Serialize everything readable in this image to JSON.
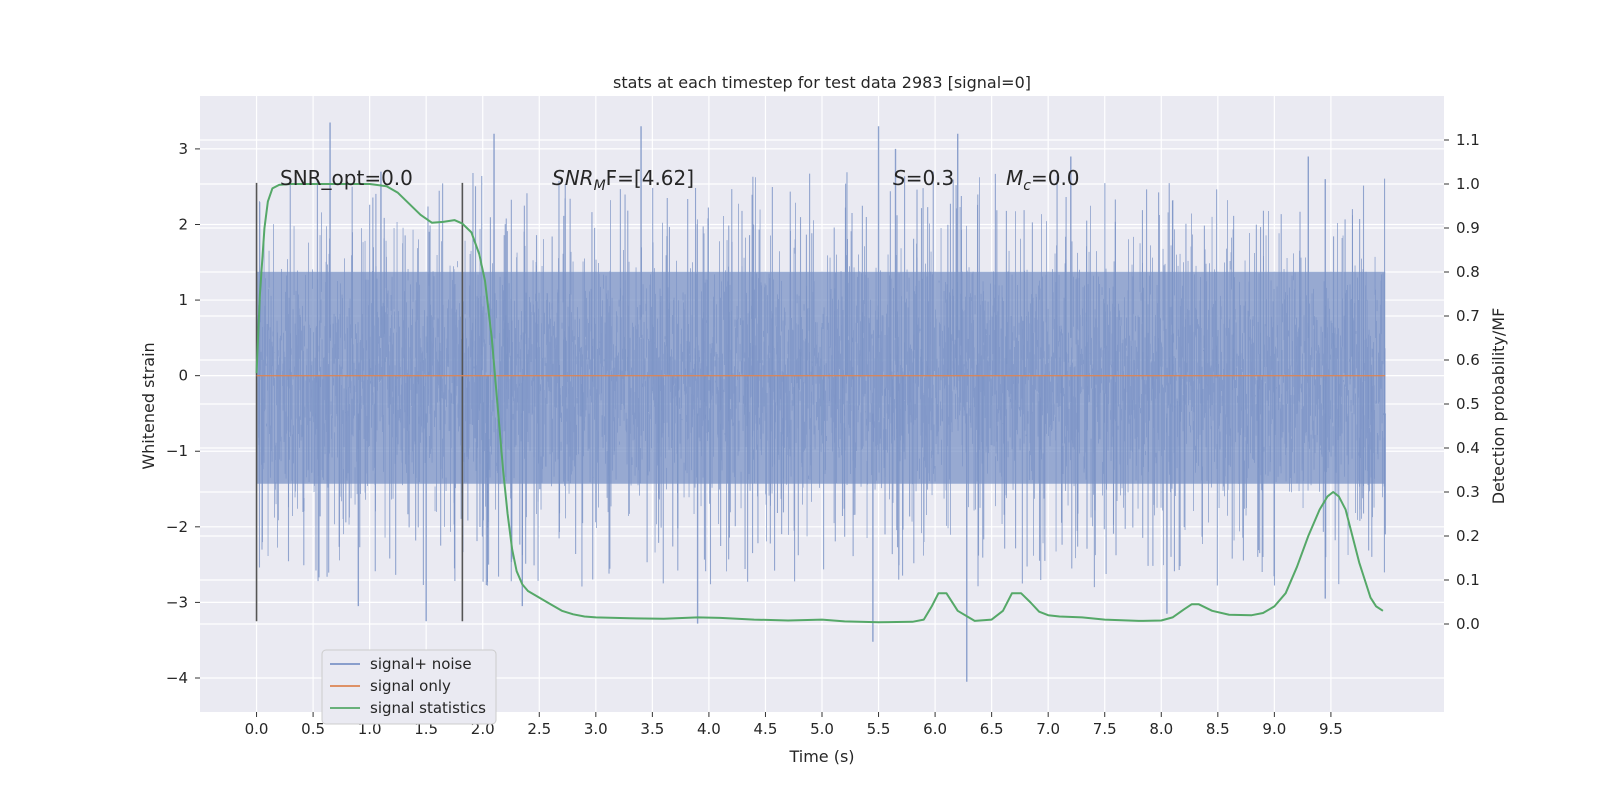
{
  "chart_data": {
    "type": "line",
    "title": "stats at each timestep for test data 2983 [signal=0]",
    "xlabel": "Time (s)",
    "ylabel_left": "Whitened strain",
    "ylabel_right": "Detection probability/MF",
    "xlim": [
      -0.5,
      10.5
    ],
    "ylim_left": [
      -4.45,
      3.7
    ],
    "ylim_right": [
      -0.2,
      1.2
    ],
    "xticks": [
      "0.0",
      "0.5",
      "1.0",
      "1.5",
      "2.0",
      "2.5",
      "3.0",
      "3.5",
      "4.0",
      "4.5",
      "5.0",
      "5.5",
      "6.0",
      "6.5",
      "7.0",
      "7.5",
      "8.0",
      "8.5",
      "9.0",
      "9.5"
    ],
    "yticks_left": [
      "3",
      "2",
      "1",
      "0",
      "−1",
      "−2",
      "−3",
      "−4"
    ],
    "yticks_right": [
      "1.1",
      "1.0",
      "0.9",
      "0.8",
      "0.7",
      "0.6",
      "0.5",
      "0.4",
      "0.3",
      "0.2",
      "0.1",
      "0.0"
    ],
    "grid": true,
    "legend_position": "lower-left",
    "annotations": {
      "snr_opt": "SNR_opt=0.0",
      "snr_mf_label": "SNR",
      "snr_mf_sub": "M",
      "snr_mf_value": "F=[4.62]",
      "s_label": "S",
      "s_value": "=0.3",
      "mc_label": "M",
      "mc_sub": "c",
      "mc_value": "=0.0"
    },
    "vlines": [
      {
        "x": 0.0,
        "y_range": [
          -3.25,
          2.55
        ]
      },
      {
        "x": 1.82,
        "y_range": [
          -3.25,
          2.55
        ]
      }
    ],
    "series": [
      {
        "name": "signal+ noise",
        "color": "#7b93c6",
        "axis": "left",
        "x_range": [
          0.0,
          9.98
        ],
        "envelope": {
          "upper_peaks": [
            [
              0.65,
              3.35
            ],
            [
              1.1,
              2.7
            ],
            [
              2.1,
              3.2
            ],
            [
              3.4,
              3.3
            ],
            [
              5.5,
              3.3
            ],
            [
              5.65,
              3.0
            ],
            [
              6.2,
              3.2
            ],
            [
              7.2,
              2.9
            ],
            [
              9.3,
              2.9
            ],
            [
              9.45,
              2.6
            ]
          ],
          "lower_peaks": [
            [
              0.9,
              -3.05
            ],
            [
              1.5,
              -3.25
            ],
            [
              2.35,
              -3.05
            ],
            [
              3.9,
              -3.28
            ],
            [
              5.45,
              -3.52
            ],
            [
              6.28,
              -4.05
            ],
            [
              8.05,
              -3.15
            ],
            [
              9.45,
              -2.95
            ],
            [
              9.98,
              -2.1
            ]
          ],
          "typical_upper": 2.5,
          "typical_lower": -2.6
        }
      },
      {
        "name": "signal only",
        "color": "#dd8452",
        "axis": "left",
        "x": [
          0.0,
          9.98
        ],
        "y": [
          0.0,
          0.0
        ]
      },
      {
        "name": "signal statistics",
        "color": "#55a868",
        "axis": "right",
        "x": [
          0.0,
          0.03,
          0.07,
          0.1,
          0.14,
          0.2,
          0.3,
          0.5,
          0.8,
          1.0,
          1.15,
          1.25,
          1.35,
          1.45,
          1.55,
          1.65,
          1.75,
          1.82,
          1.9,
          1.97,
          2.02,
          2.08,
          2.13,
          2.18,
          2.22,
          2.26,
          2.3,
          2.35,
          2.4,
          2.5,
          2.6,
          2.7,
          2.8,
          2.9,
          3.0,
          3.3,
          3.6,
          3.9,
          4.1,
          4.4,
          4.7,
          5.0,
          5.2,
          5.5,
          5.8,
          5.9,
          5.97,
          6.03,
          6.1,
          6.2,
          6.35,
          6.5,
          6.6,
          6.68,
          6.76,
          6.84,
          6.92,
          7.0,
          7.1,
          7.3,
          7.5,
          7.8,
          8.0,
          8.1,
          8.2,
          8.27,
          8.33,
          8.45,
          8.6,
          8.8,
          8.9,
          9.0,
          9.1,
          9.2,
          9.3,
          9.4,
          9.47,
          9.52,
          9.57,
          9.63,
          9.7,
          9.75,
          9.8,
          9.85,
          9.9,
          9.96
        ],
        "y": [
          0.57,
          0.75,
          0.9,
          0.96,
          0.99,
          0.998,
          1.0,
          1.0,
          1.0,
          1.0,
          0.995,
          0.98,
          0.955,
          0.93,
          0.912,
          0.914,
          0.918,
          0.91,
          0.89,
          0.84,
          0.78,
          0.65,
          0.5,
          0.35,
          0.25,
          0.17,
          0.12,
          0.09,
          0.075,
          0.06,
          0.045,
          0.03,
          0.022,
          0.017,
          0.015,
          0.013,
          0.012,
          0.015,
          0.014,
          0.01,
          0.008,
          0.01,
          0.006,
          0.004,
          0.005,
          0.01,
          0.04,
          0.07,
          0.07,
          0.03,
          0.007,
          0.01,
          0.03,
          0.07,
          0.07,
          0.05,
          0.028,
          0.02,
          0.017,
          0.015,
          0.01,
          0.007,
          0.008,
          0.015,
          0.033,
          0.045,
          0.045,
          0.03,
          0.021,
          0.02,
          0.025,
          0.04,
          0.07,
          0.13,
          0.2,
          0.26,
          0.29,
          0.3,
          0.29,
          0.26,
          0.19,
          0.14,
          0.1,
          0.06,
          0.04,
          0.03
        ]
      }
    ]
  }
}
